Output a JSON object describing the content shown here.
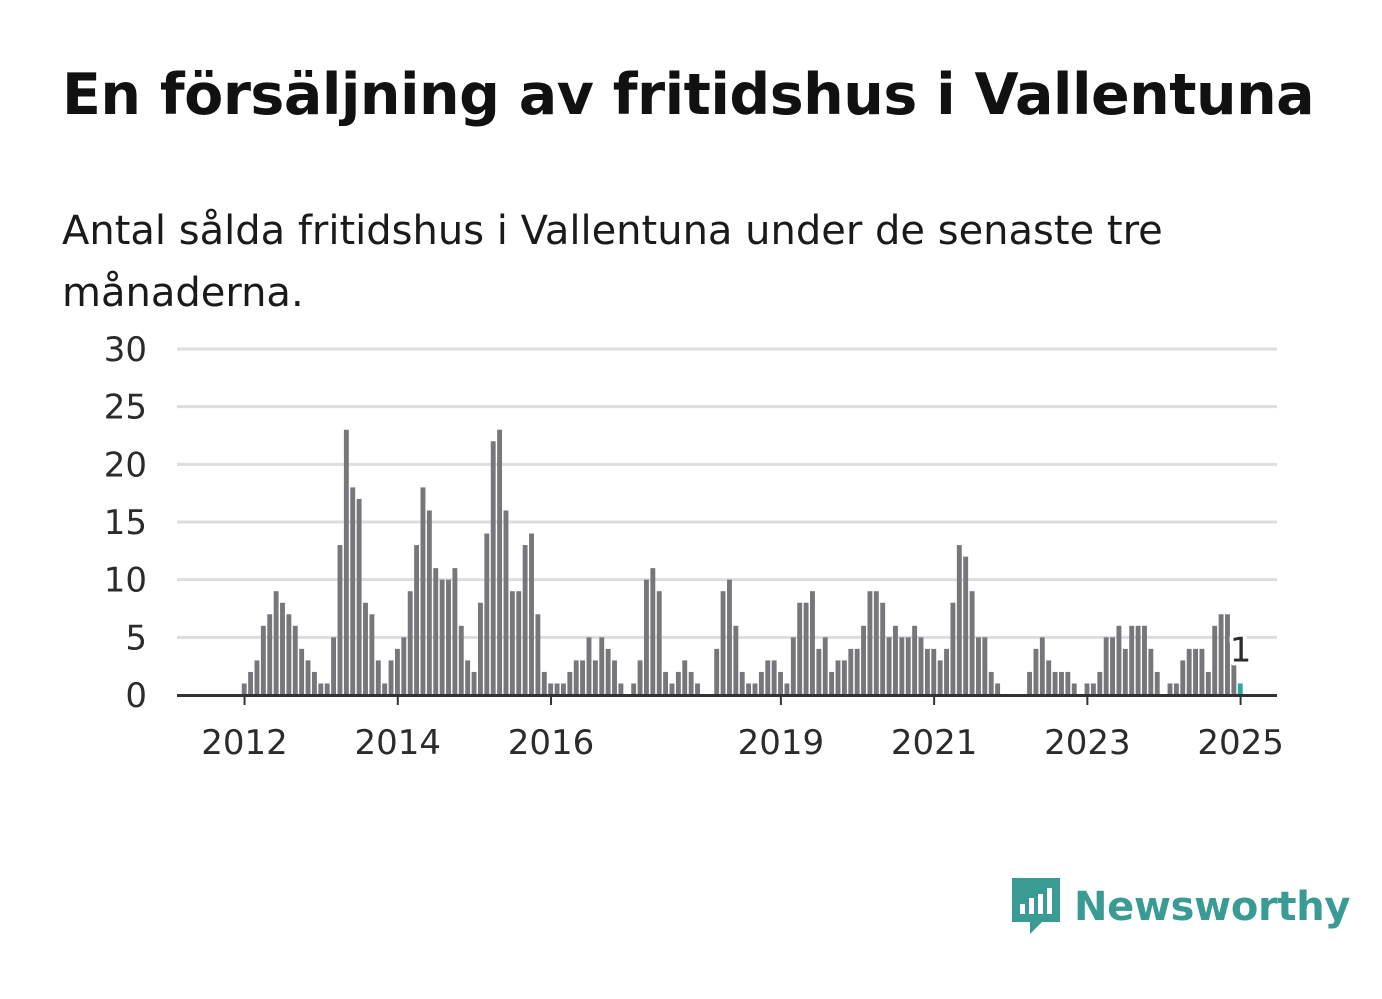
{
  "title": "En försäljning av fritidshus i Vallentuna",
  "subtitle": "Antal sålda fritidshus i Vallentuna under de senaste tre månaderna.",
  "brand": {
    "name": "Newsworthy",
    "color": "#3a9a94",
    "icon": "newsworthy-logo-icon"
  },
  "colors": {
    "bar": "#77767b",
    "highlight": "#2ba8a0",
    "grid": "#dddddd",
    "axis": "#333333"
  },
  "chart_data": {
    "type": "bar",
    "title": "En försäljning av fritidshus i Vallentuna",
    "xlabel": "",
    "ylabel": "",
    "ylim": [
      0,
      30
    ],
    "yticks": [
      0,
      5,
      10,
      15,
      20,
      25,
      30
    ],
    "xticks": [
      "2012",
      "2014",
      "2016",
      "2019",
      "2021",
      "2023",
      "2025"
    ],
    "grid": true,
    "frequency": "monthly",
    "start": "2011-03",
    "end": "2025-01",
    "highlight_label": "1",
    "values": [
      0,
      0,
      0,
      0,
      0,
      0,
      0,
      0,
      0,
      0,
      1,
      2,
      3,
      6,
      7,
      9,
      8,
      7,
      6,
      4,
      3,
      2,
      1,
      1,
      5,
      13,
      23,
      18,
      17,
      8,
      7,
      3,
      1,
      3,
      4,
      5,
      9,
      13,
      18,
      16,
      11,
      10,
      10,
      11,
      6,
      3,
      2,
      8,
      14,
      22,
      23,
      16,
      9,
      9,
      13,
      14,
      7,
      2,
      1,
      1,
      1,
      2,
      3,
      3,
      5,
      3,
      5,
      4,
      3,
      1,
      0,
      1,
      3,
      10,
      11,
      9,
      2,
      1,
      2,
      3,
      2,
      1,
      0,
      0,
      4,
      9,
      10,
      6,
      2,
      1,
      1,
      2,
      3,
      3,
      2,
      1,
      5,
      8,
      8,
      9,
      4,
      5,
      2,
      3,
      3,
      4,
      4,
      6,
      9,
      9,
      8,
      5,
      6,
      5,
      5,
      6,
      5,
      4,
      4,
      3,
      4,
      8,
      13,
      12,
      9,
      5,
      5,
      2,
      1,
      0,
      0,
      0,
      0,
      2,
      4,
      5,
      3,
      2,
      2,
      2,
      1,
      0,
      1,
      1,
      2,
      5,
      5,
      6,
      4,
      6,
      6,
      6,
      4,
      2,
      0,
      1,
      1,
      3,
      4,
      4,
      4,
      2,
      6,
      7,
      7,
      3,
      1
    ]
  }
}
